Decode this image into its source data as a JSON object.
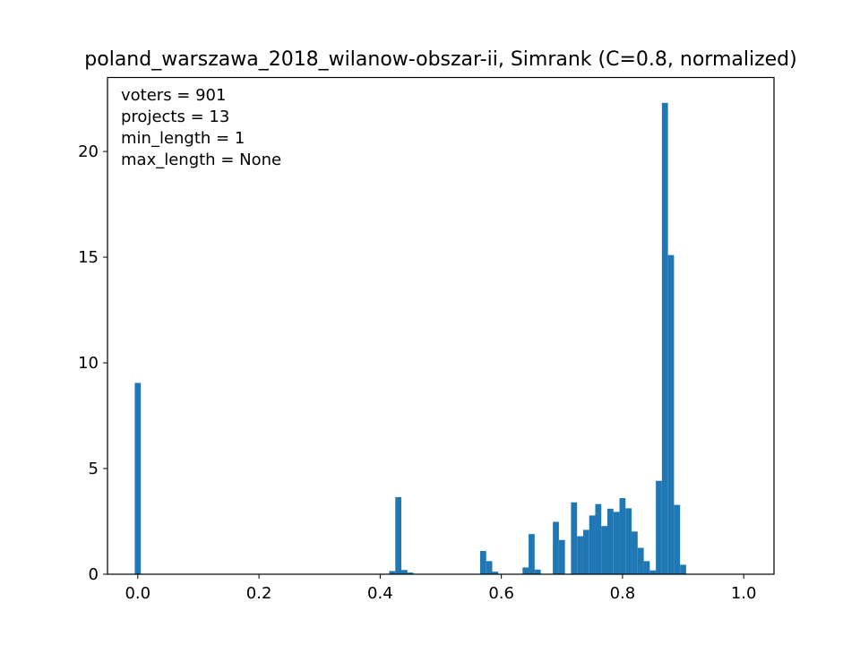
{
  "chart_data": {
    "type": "bar",
    "title": "poland_warszawa_2018_wilanow-obszar-ii, Simrank (C=0.8, normalized)",
    "xlabel": "",
    "ylabel": "",
    "xlim": [
      -0.05,
      1.05
    ],
    "ylim": [
      0,
      23.5
    ],
    "x_ticks": [
      0.0,
      0.2,
      0.4,
      0.6,
      0.8,
      1.0
    ],
    "x_tick_labels": [
      "0.0",
      "0.2",
      "0.4",
      "0.6",
      "0.8",
      "1.0"
    ],
    "y_ticks": [
      0,
      5,
      10,
      15,
      20
    ],
    "y_tick_labels": [
      "0",
      "5",
      "10",
      "15",
      "20"
    ],
    "annotations": [
      "voters = 901",
      "projects = 13",
      "min_length = 1",
      "max_length = None"
    ],
    "bin_width": 0.01,
    "bar_color": "#1f77b4",
    "bars": [
      {
        "x": 0.0,
        "y": 9.05
      },
      {
        "x": 0.42,
        "y": 0.15
      },
      {
        "x": 0.43,
        "y": 3.65
      },
      {
        "x": 0.44,
        "y": 0.2
      },
      {
        "x": 0.45,
        "y": 0.08
      },
      {
        "x": 0.57,
        "y": 1.1
      },
      {
        "x": 0.58,
        "y": 0.62
      },
      {
        "x": 0.59,
        "y": 0.12
      },
      {
        "x": 0.64,
        "y": 0.32
      },
      {
        "x": 0.65,
        "y": 1.9
      },
      {
        "x": 0.66,
        "y": 0.22
      },
      {
        "x": 0.69,
        "y": 2.48
      },
      {
        "x": 0.7,
        "y": 1.62
      },
      {
        "x": 0.72,
        "y": 3.4
      },
      {
        "x": 0.73,
        "y": 1.8
      },
      {
        "x": 0.74,
        "y": 2.1
      },
      {
        "x": 0.75,
        "y": 2.78
      },
      {
        "x": 0.76,
        "y": 3.32
      },
      {
        "x": 0.77,
        "y": 2.28
      },
      {
        "x": 0.78,
        "y": 3.1
      },
      {
        "x": 0.79,
        "y": 2.95
      },
      {
        "x": 0.8,
        "y": 3.6
      },
      {
        "x": 0.81,
        "y": 3.12
      },
      {
        "x": 0.82,
        "y": 2.02
      },
      {
        "x": 0.83,
        "y": 1.25
      },
      {
        "x": 0.84,
        "y": 0.62
      },
      {
        "x": 0.85,
        "y": 0.18
      },
      {
        "x": 0.86,
        "y": 4.42
      },
      {
        "x": 0.87,
        "y": 22.3
      },
      {
        "x": 0.88,
        "y": 15.1
      },
      {
        "x": 0.89,
        "y": 3.28
      },
      {
        "x": 0.9,
        "y": 0.45
      }
    ]
  }
}
